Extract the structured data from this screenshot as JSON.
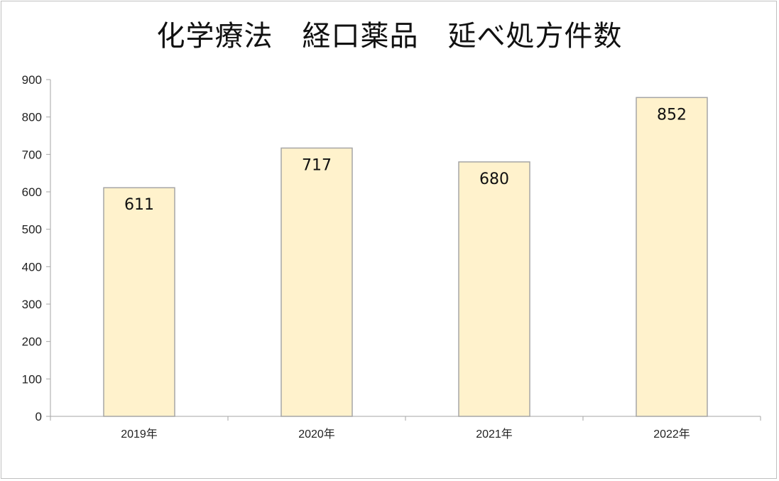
{
  "chart_data": {
    "type": "bar",
    "title": "化学療法　経口薬品　延べ処方件数",
    "categories": [
      "2019年",
      "2020年",
      "2021年",
      "2022年"
    ],
    "values": [
      611,
      717,
      680,
      852
    ],
    "ylim": [
      0,
      900
    ],
    "yticks": [
      0,
      100,
      200,
      300,
      400,
      500,
      600,
      700,
      800,
      900
    ],
    "xlabel": "",
    "ylabel": "",
    "grid": false,
    "legend": "none",
    "bar_fill": "#fff2cc",
    "bar_stroke": "#a6a6a6",
    "axis_color": "#a6a6a6"
  }
}
